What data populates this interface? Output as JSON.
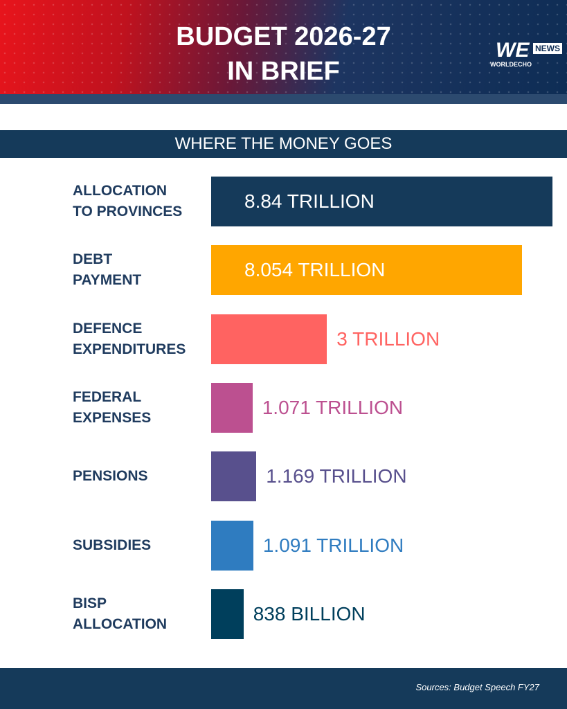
{
  "chart_data": {
    "type": "bar",
    "orientation": "horizontal",
    "title": "BUDGET 2026-27\nIN BRIEF",
    "subtitle": "WHERE THE MONEY GOES",
    "logo": {
      "mark": "WE",
      "badge": "NEWS",
      "name": "WORLDECHO"
    },
    "source": "Sources:  Budget Speech FY27",
    "categories": [
      "ALLOCATION\nTO PROVINCES",
      "DEBT\nPAYMENT",
      "DEFENCE\nEXPENDITURES",
      "FEDERAL\nEXPENSES",
      "PENSIONS",
      "SUBSIDIES",
      "BISP\nALLOCATION"
    ],
    "values": [
      8.84,
      8.054,
      3,
      1.071,
      1.169,
      1.091,
      0.838
    ],
    "value_labels": [
      "8.84 TRILLION",
      "8.054 TRILLION",
      "3 TRILLION",
      "1.071 TRILLION",
      "1.169 TRILLION",
      "1.091 TRILLION",
      "838 BILLION"
    ],
    "colors": [
      "#153a5a",
      "#ffa600",
      "#ff6361",
      "#bc5090",
      "#58508d",
      "#2f7cc0",
      "#003f5c"
    ]
  }
}
